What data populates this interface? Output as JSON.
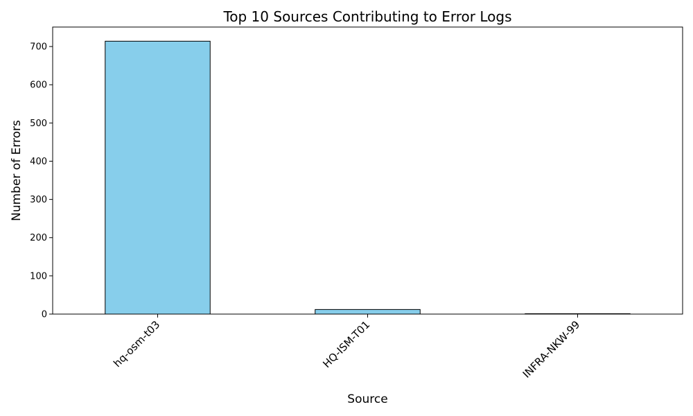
{
  "chart_data": {
    "type": "bar",
    "title": "Top 10 Sources Contributing to Error Logs",
    "xlabel": "Source",
    "ylabel": "Number of Errors",
    "categories": [
      "hq-osm-t03",
      "HQ-ISM-T01",
      "INFRA-NKW-99"
    ],
    "values": [
      714,
      12,
      1
    ],
    "ylim": [
      0,
      751
    ],
    "yticks": [
      0,
      100,
      200,
      300,
      400,
      500,
      600,
      700
    ],
    "grid": false,
    "bar_color": "#87ceeb",
    "edge_color": "#000000"
  }
}
